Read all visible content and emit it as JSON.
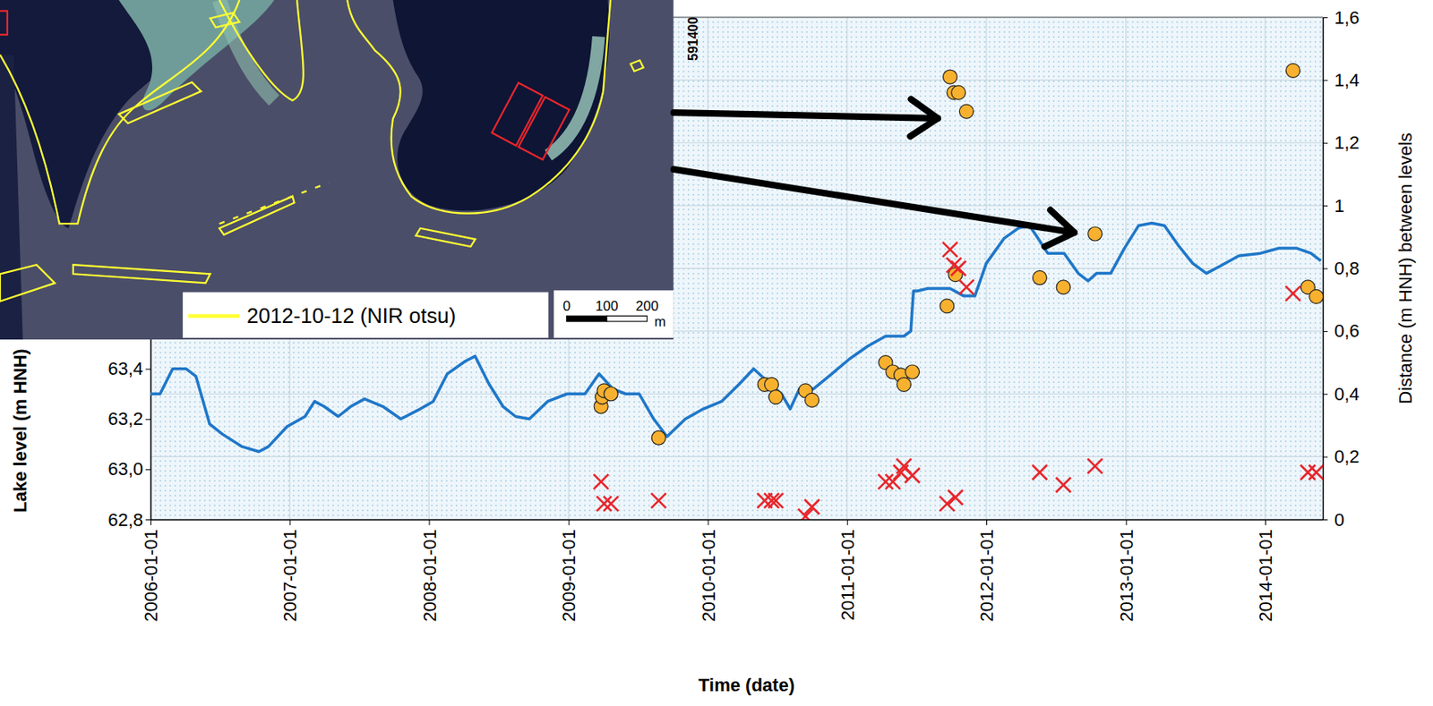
{
  "chart_data": {
    "type": "line",
    "x_label": "Time (date)",
    "y_label": "Lake level (m HNH)",
    "y2_label": "Distance (m HNH) between levels",
    "xlim": [
      "2006-01-01",
      "2014-06-01"
    ],
    "xticks": [
      "2006-01-01",
      "2007-01-01",
      "2008-01-01",
      "2009-01-01",
      "2010-01-01",
      "2011-01-01",
      "2012-01-01",
      "2013-01-01",
      "2014-01-01"
    ],
    "ylim": [
      62.8,
      64.8
    ],
    "yticks": [
      {
        "value": 62.8,
        "label": "62,8"
      },
      {
        "value": 63,
        "label": "63,0"
      },
      {
        "value": 63.2,
        "label": "63,2"
      },
      {
        "value": 63.4,
        "label": "63,4"
      }
    ],
    "y2lim": [
      0,
      1.6
    ],
    "y2ticks": [
      0,
      {
        "value": 0.2,
        "label": "0,2"
      },
      {
        "value": 0.4,
        "label": "0,4"
      },
      {
        "value": 0.6,
        "label": "0,6"
      },
      {
        "value": 0.8,
        "label": "0,8"
      },
      1,
      {
        "value": 1.2,
        "label": "1,2"
      },
      {
        "value": 1.4,
        "label": "1,4"
      },
      {
        "value": 1.6,
        "label": "1,6"
      }
    ],
    "grid": true,
    "series": [
      {
        "type": "line",
        "color": "#1f77c9",
        "x": [
          "2006-01-01",
          "2006-01-26",
          "2006-02-28",
          "2006-04-04",
          "2006-04-30",
          "2006-06-05",
          "2006-07-08",
          "2006-08-29",
          "2006-10-12",
          "2006-11-06",
          "2006-12-25",
          "2007-02-10",
          "2007-03-07",
          "2007-04-01",
          "2007-05-08",
          "2007-06-10",
          "2007-07-16",
          "2007-09-02",
          "2007-10-19",
          "2007-12-09",
          "2008-01-12",
          "2008-02-18",
          "2008-04-05",
          "2008-05-01",
          "2008-06-06",
          "2008-07-13",
          "2008-08-15",
          "2008-09-20",
          "2008-11-07",
          "2008-12-28",
          "2009-02-13",
          "2009-03-22",
          "2009-04-27",
          "2009-05-30",
          "2009-07-05",
          "2009-08-12",
          "2009-09-16",
          "2009-11-03",
          "2009-12-20",
          "2010-02-06",
          "2010-03-25",
          "2010-05-01",
          "2010-06-06",
          "2010-07-13",
          "2010-08-05",
          "2010-08-29",
          "2010-10-05",
          "2010-11-22",
          "2011-01-08",
          "2011-02-24",
          "2011-04-12",
          "2011-05-30",
          "2011-06-17",
          "2011-06-24",
          "2011-07-05",
          "2011-07-31",
          "2011-09-28",
          "2011-11-03",
          "2011-12-02",
          "2012-01-01",
          "2012-02-17",
          "2012-03-25",
          "2012-04-23",
          "2012-05-11",
          "2012-06-10",
          "2012-07-23",
          "2012-08-29",
          "2012-09-24",
          "2012-10-16",
          "2012-11-22",
          "2012-12-28",
          "2013-02-03",
          "2013-03-10",
          "2013-04-12",
          "2013-05-19",
          "2013-06-25",
          "2013-07-31",
          "2013-09-06",
          "2013-10-24",
          "2013-12-20",
          "2014-02-06",
          "2014-03-25",
          "2014-05-01",
          "2014-05-27"
        ],
        "values": [
          63.3,
          63.3,
          63.4,
          63.4,
          63.37,
          63.18,
          63.14,
          63.09,
          63.07,
          63.09,
          63.17,
          63.21,
          63.27,
          63.25,
          63.21,
          63.25,
          63.28,
          63.25,
          63.2,
          63.24,
          63.27,
          63.38,
          63.43,
          63.45,
          63.34,
          63.25,
          63.21,
          63.2,
          63.27,
          63.3,
          63.3,
          63.38,
          63.32,
          63.3,
          63.3,
          63.2,
          63.13,
          63.2,
          63.24,
          63.27,
          63.34,
          63.4,
          63.35,
          63.3,
          63.24,
          63.32,
          63.32,
          63.38,
          63.44,
          63.49,
          63.53,
          63.53,
          63.55,
          63.71,
          63.71,
          63.72,
          63.72,
          63.69,
          63.69,
          63.82,
          63.92,
          63.96,
          63.97,
          63.93,
          63.86,
          63.86,
          63.78,
          63.75,
          63.78,
          63.78,
          63.88,
          63.97,
          63.98,
          63.97,
          63.89,
          63.82,
          63.78,
          63.81,
          63.85,
          63.86,
          63.88,
          63.88,
          63.86,
          63.83
        ]
      },
      {
        "type": "scatter",
        "axis": "y2",
        "marker": "circle",
        "color": "#f7b12f",
        "x": [
          "2009-03-27",
          "2009-03-30",
          "2009-04-04",
          "2009-04-22",
          "2009-08-25",
          "2010-05-30",
          "2010-06-17",
          "2010-06-28",
          "2010-09-14",
          "2010-10-01",
          "2011-04-12",
          "2011-05-01",
          "2011-05-22",
          "2011-05-30",
          "2011-06-21",
          "2011-09-20",
          "2011-09-28",
          "2011-10-08",
          "2011-10-12",
          "2011-10-20",
          "2011-11-10",
          "2012-05-20",
          "2012-07-21",
          "2012-10-12",
          "2014-03-15",
          "2014-04-23",
          "2014-05-15"
        ],
        "values": [
          0.36,
          0.39,
          0.41,
          0.4,
          0.26,
          0.43,
          0.43,
          0.39,
          0.41,
          0.38,
          0.5,
          0.47,
          0.46,
          0.43,
          0.47,
          0.68,
          1.41,
          1.36,
          0.78,
          1.36,
          1.3,
          0.77,
          0.74,
          0.91,
          1.43,
          0.74,
          0.71
        ]
      },
      {
        "type": "scatter",
        "axis": "y2",
        "marker": "x",
        "color": "#e8262b",
        "x": [
          "2009-03-27",
          "2009-04-04",
          "2009-04-22",
          "2009-08-25",
          "2010-05-30",
          "2010-06-17",
          "2010-06-28",
          "2010-09-14",
          "2010-10-01",
          "2011-04-12",
          "2011-05-01",
          "2011-05-22",
          "2011-05-30",
          "2011-06-21",
          "2011-09-20",
          "2011-09-28",
          "2011-10-08",
          "2011-10-12",
          "2011-10-20",
          "2011-11-10",
          "2012-05-20",
          "2012-07-21",
          "2012-10-12",
          "2014-03-15",
          "2014-04-23",
          "2014-05-15"
        ],
        "values": [
          0.12,
          0.05,
          0.05,
          0.06,
          0.06,
          0.06,
          0.06,
          0.01,
          0.04,
          0.12,
          0.12,
          0.15,
          0.17,
          0.14,
          0.05,
          0.86,
          0.81,
          0.07,
          0.8,
          0.74,
          0.15,
          0.11,
          0.17,
          0.72,
          0.15,
          0.15
        ]
      }
    ]
  },
  "inset": {
    "legend_label": "2012-10-12 (NIR otsu)",
    "scale_ticks": [
      0,
      100,
      200
    ],
    "scale_unit": "m",
    "coordinate_label": "591400"
  }
}
